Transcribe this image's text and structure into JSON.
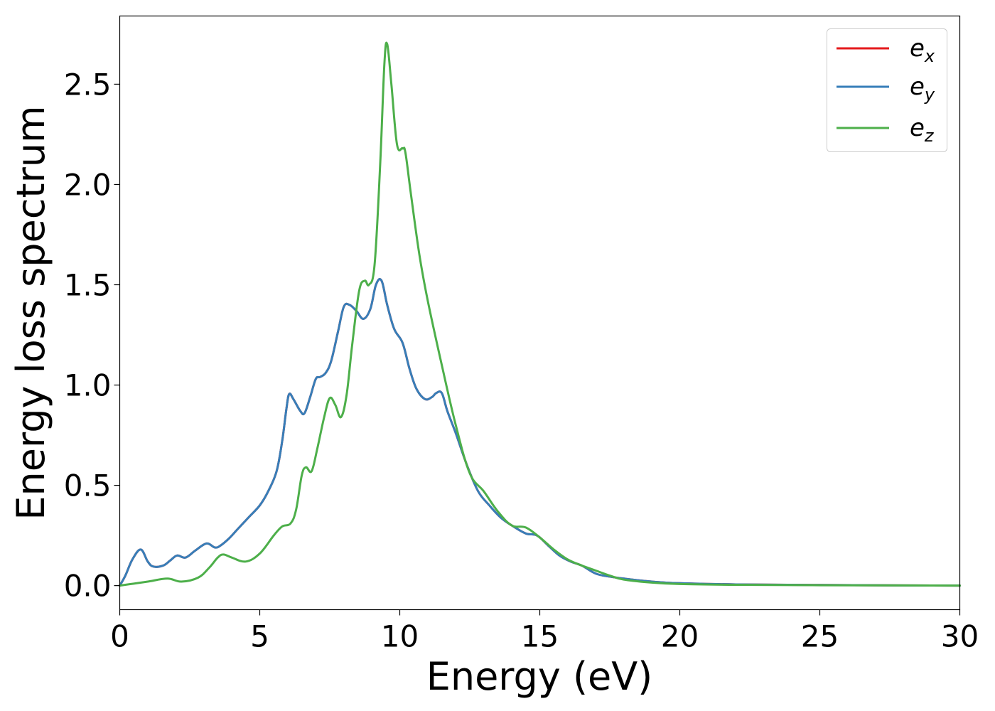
{
  "chart_data": {
    "type": "line",
    "xlabel": "Energy (eV)",
    "ylabel": "Energy loss spectrum",
    "xlim": [
      0,
      30
    ],
    "ylim": [
      -0.12,
      2.84
    ],
    "xticks": [
      "0",
      "5",
      "10",
      "15",
      "20",
      "25",
      "30"
    ],
    "yticks": [
      "0.0",
      "0.5",
      "1.0",
      "1.5",
      "2.0",
      "2.5"
    ],
    "grid": false,
    "legend_position": "top-right",
    "series": [
      {
        "name": "e",
        "subscript": "x",
        "color": "#e41a1c",
        "x": [
          0,
          0.2,
          0.45,
          0.75,
          1.0,
          1.2,
          1.55,
          1.8,
          2.05,
          2.35,
          2.7,
          3.1,
          3.4,
          3.6,
          3.9,
          4.2,
          4.6,
          5.0,
          5.3,
          5.6,
          5.8,
          5.95,
          6.05,
          6.2,
          6.45,
          6.6,
          6.8,
          7.0,
          7.15,
          7.35,
          7.55,
          7.8,
          8.0,
          8.2,
          8.45,
          8.7,
          8.95,
          9.15,
          9.35,
          9.55,
          9.8,
          10.1,
          10.35,
          10.6,
          10.9,
          11.15,
          11.3,
          11.5,
          11.7,
          12.0,
          12.4,
          12.8,
          13.2,
          13.6,
          14.0,
          14.5,
          14.9,
          15.3,
          15.7,
          16.1,
          16.5,
          17.0,
          17.5,
          18.0,
          19.0,
          20.0,
          22.0,
          25.0,
          28.0,
          30.0
        ],
        "values": [
          0.0,
          0.05,
          0.13,
          0.18,
          0.12,
          0.095,
          0.1,
          0.125,
          0.15,
          0.14,
          0.175,
          0.21,
          0.19,
          0.2,
          0.235,
          0.28,
          0.34,
          0.4,
          0.47,
          0.57,
          0.72,
          0.88,
          0.955,
          0.93,
          0.87,
          0.86,
          0.94,
          1.03,
          1.04,
          1.06,
          1.12,
          1.27,
          1.39,
          1.4,
          1.37,
          1.33,
          1.38,
          1.5,
          1.52,
          1.4,
          1.28,
          1.21,
          1.08,
          0.98,
          0.93,
          0.94,
          0.96,
          0.96,
          0.87,
          0.76,
          0.6,
          0.47,
          0.4,
          0.34,
          0.3,
          0.26,
          0.25,
          0.2,
          0.15,
          0.12,
          0.1,
          0.06,
          0.045,
          0.035,
          0.02,
          0.012,
          0.006,
          0.003,
          0.001,
          0.0
        ]
      },
      {
        "name": "e",
        "subscript": "y",
        "color": "#377eb8",
        "x": [
          0,
          0.2,
          0.45,
          0.75,
          1.0,
          1.2,
          1.55,
          1.8,
          2.05,
          2.35,
          2.7,
          3.1,
          3.4,
          3.6,
          3.9,
          4.2,
          4.6,
          5.0,
          5.3,
          5.6,
          5.8,
          5.95,
          6.05,
          6.2,
          6.45,
          6.6,
          6.8,
          7.0,
          7.15,
          7.35,
          7.55,
          7.8,
          8.0,
          8.2,
          8.45,
          8.7,
          8.95,
          9.15,
          9.35,
          9.55,
          9.8,
          10.1,
          10.35,
          10.6,
          10.9,
          11.15,
          11.3,
          11.5,
          11.7,
          12.0,
          12.4,
          12.8,
          13.2,
          13.6,
          14.0,
          14.5,
          14.9,
          15.3,
          15.7,
          16.1,
          16.5,
          17.0,
          17.5,
          18.0,
          19.0,
          20.0,
          22.0,
          25.0,
          28.0,
          30.0
        ],
        "values": [
          0.0,
          0.05,
          0.13,
          0.18,
          0.12,
          0.095,
          0.1,
          0.125,
          0.15,
          0.14,
          0.175,
          0.21,
          0.19,
          0.2,
          0.235,
          0.28,
          0.34,
          0.4,
          0.47,
          0.57,
          0.72,
          0.88,
          0.955,
          0.93,
          0.87,
          0.86,
          0.94,
          1.03,
          1.04,
          1.06,
          1.12,
          1.27,
          1.39,
          1.4,
          1.37,
          1.33,
          1.38,
          1.5,
          1.52,
          1.4,
          1.28,
          1.21,
          1.08,
          0.98,
          0.93,
          0.94,
          0.96,
          0.96,
          0.87,
          0.76,
          0.6,
          0.47,
          0.4,
          0.34,
          0.3,
          0.26,
          0.25,
          0.2,
          0.15,
          0.12,
          0.1,
          0.06,
          0.045,
          0.035,
          0.02,
          0.012,
          0.006,
          0.003,
          0.001,
          0.0
        ]
      },
      {
        "name": "e",
        "subscript": "z",
        "color": "#4daf4a",
        "x": [
          0,
          0.5,
          1.0,
          1.7,
          2.2,
          2.8,
          3.2,
          3.5,
          3.7,
          4.0,
          4.5,
          5.0,
          5.5,
          5.8,
          6.1,
          6.3,
          6.5,
          6.65,
          6.85,
          7.05,
          7.3,
          7.5,
          7.7,
          7.9,
          8.1,
          8.3,
          8.55,
          8.75,
          8.9,
          9.1,
          9.3,
          9.45,
          9.55,
          9.7,
          9.9,
          10.1,
          10.2,
          10.4,
          10.7,
          11.0,
          11.5,
          12.0,
          12.5,
          13.0,
          13.5,
          14.0,
          14.5,
          15.0,
          15.5,
          16.0,
          16.5,
          17.0,
          17.5,
          18.0,
          19.0,
          20.0,
          22.0,
          25.0,
          28.0,
          30.0
        ],
        "values": [
          0.0,
          0.01,
          0.02,
          0.035,
          0.02,
          0.04,
          0.09,
          0.14,
          0.155,
          0.14,
          0.12,
          0.16,
          0.25,
          0.295,
          0.31,
          0.38,
          0.55,
          0.59,
          0.57,
          0.68,
          0.84,
          0.935,
          0.9,
          0.84,
          0.95,
          1.2,
          1.47,
          1.52,
          1.5,
          1.6,
          2.1,
          2.6,
          2.7,
          2.5,
          2.2,
          2.18,
          2.16,
          1.95,
          1.65,
          1.42,
          1.1,
          0.8,
          0.56,
          0.47,
          0.37,
          0.3,
          0.29,
          0.24,
          0.18,
          0.13,
          0.1,
          0.075,
          0.05,
          0.03,
          0.015,
          0.008,
          0.004,
          0.002,
          0.001,
          0.0
        ]
      }
    ]
  }
}
